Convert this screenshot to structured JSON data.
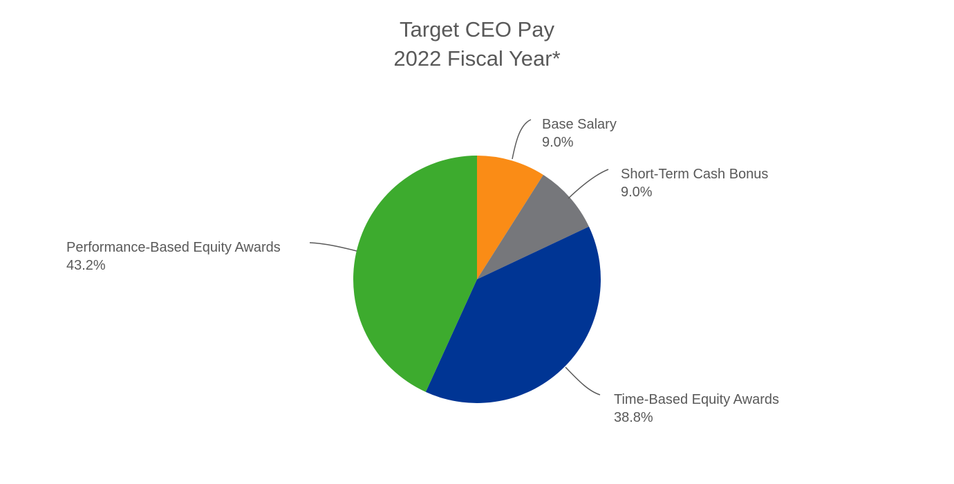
{
  "chart_data": {
    "type": "pie",
    "title": "Target CEO Pay",
    "subtitle": "2022 Fiscal Year*",
    "slices": [
      {
        "label": "Base Salary",
        "value": 9.0,
        "value_label": "9.0%",
        "color": "#FA8C16"
      },
      {
        "label": "Short-Term Cash Bonus",
        "value": 9.0,
        "value_label": "9.0%",
        "color": "#76777B"
      },
      {
        "label": "Time-Based Equity Awards",
        "value": 38.8,
        "value_label": "38.8%",
        "color": "#003594"
      },
      {
        "label": "Performance-Based Equity Awards",
        "value": 43.2,
        "value_label": "43.2%",
        "color": "#3DAB2E"
      }
    ],
    "start_angle": "12 o'clock",
    "direction": "clockwise",
    "legend": "none"
  },
  "colors": {
    "text": "#595959",
    "background": "#FFFFFF"
  }
}
